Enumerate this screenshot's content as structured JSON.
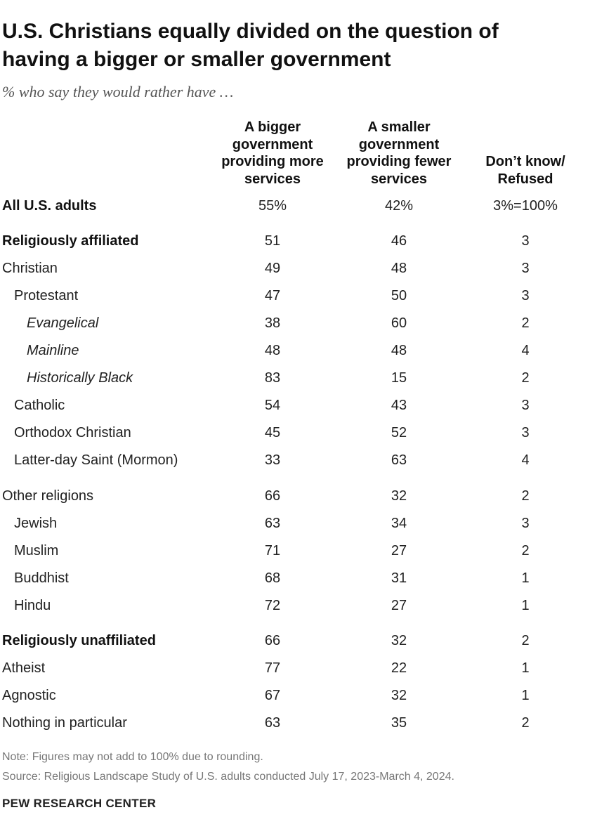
{
  "header": {
    "title_lines": [
      "U.S. Christians equally divided on the question of",
      "having a bigger or smaller government"
    ],
    "subtitle": "% who say they would rather have …"
  },
  "table": {
    "columns": [
      [
        "A bigger",
        "government",
        "providing more",
        "services"
      ],
      [
        "A smaller",
        "government",
        "providing fewer",
        "services"
      ],
      [
        "Don’t know/",
        "Refused"
      ]
    ],
    "rows": [
      [
        "All U.S. adults",
        "55%",
        "42%",
        "3%=100%"
      ],
      [
        "Religiously affiliated",
        "51",
        "46",
        "3"
      ],
      [
        "Christian",
        "49",
        "48",
        "3"
      ],
      [
        "Protestant",
        "47",
        "50",
        "3"
      ],
      [
        "Evangelical",
        "38",
        "60",
        "2"
      ],
      [
        "Mainline",
        "48",
        "48",
        "4"
      ],
      [
        "Historically Black",
        "83",
        "15",
        "2"
      ],
      [
        "Catholic",
        "54",
        "43",
        "3"
      ],
      [
        "Orthodox Christian",
        "45",
        "52",
        "3"
      ],
      [
        "Latter-day Saint (Mormon)",
        "33",
        "63",
        "4"
      ],
      [
        "Other religions",
        "66",
        "32",
        "2"
      ],
      [
        "Jewish",
        "63",
        "34",
        "3"
      ],
      [
        "Muslim",
        "71",
        "27",
        "2"
      ],
      [
        "Buddhist",
        "68",
        "31",
        "1"
      ],
      [
        "Hindu",
        "72",
        "27",
        "1"
      ],
      [
        "Religiously unaffiliated",
        "66",
        "32",
        "2"
      ],
      [
        "Atheist",
        "77",
        "22",
        "1"
      ],
      [
        "Agnostic",
        "67",
        "32",
        "1"
      ],
      [
        "Nothing in particular",
        "63",
        "35",
        "2"
      ]
    ]
  },
  "footer": {
    "note": "Note: Figures may not add to 100% due to rounding.",
    "source": "Source: Religious Landscape Study of U.S. adults conducted July 17, 2023-March 4, 2024.",
    "brand": "PEW RESEARCH CENTER"
  }
}
